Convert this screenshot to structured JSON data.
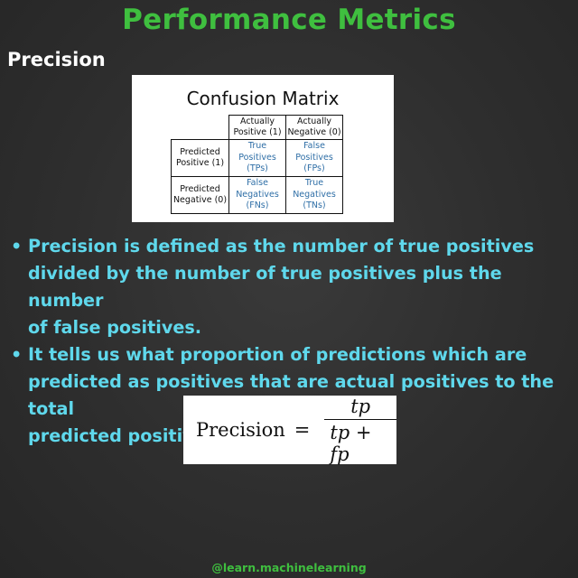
{
  "header": {
    "title": "Performance Metrics",
    "subtitle": "Precision"
  },
  "confusion_matrix": {
    "title": "Confusion Matrix",
    "col_headers": [
      [
        "Actually",
        "Positive (1)"
      ],
      [
        "Actually",
        "Negative (0)"
      ]
    ],
    "rows": [
      {
        "header": [
          "Predicted",
          "Positive (1)"
        ],
        "cells": [
          [
            "True",
            "Positives",
            "(TPs)"
          ],
          [
            "False",
            "Positives",
            "(FPs)"
          ]
        ]
      },
      {
        "header": [
          "Predicted",
          "Negative (0)"
        ],
        "cells": [
          [
            "False",
            "Negatives",
            "(FNs)"
          ],
          [
            "True",
            "Negatives",
            "(TNs)"
          ]
        ]
      }
    ],
    "colors": {
      "cell_text": "#2e6ea6"
    }
  },
  "bullets": [
    {
      "lines": [
        "Precision is defined as the number of true positives",
        "divided by the number of true positives plus the number",
        "of false positives."
      ]
    },
    {
      "lines": [
        "It tells us what proportion of predictions which are",
        "predicted as positives that are actual positives to the total",
        "predicted positives."
      ]
    }
  ],
  "bullet_glyph": "•",
  "formula": {
    "lhs": "Precision",
    "equals": "=",
    "numerator": "tp",
    "denominator": "tp + fp"
  },
  "footer": {
    "handle": "@learn.machinelearning"
  },
  "colors": {
    "title": "#3fbf3f",
    "bullet_text": "#5fd8ec",
    "background": "#2e2e2e"
  }
}
